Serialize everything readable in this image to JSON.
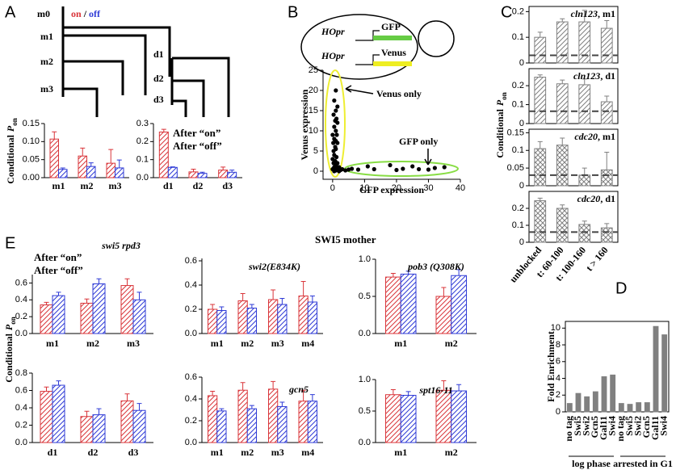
{
  "panel_labels": [
    "A",
    "B",
    "C",
    "D",
    "E"
  ],
  "lineage": {
    "cells": [
      "m0",
      "m1",
      "m2",
      "m3",
      "d1",
      "d2",
      "d3"
    ],
    "legend": [
      "on",
      "/",
      "off"
    ]
  },
  "cell_diagram": {
    "promoters": [
      "HOpr",
      "HOpr"
    ],
    "reporters": [
      "GFP",
      "Venus"
    ]
  },
  "panel_e_title": "SWI5 mother",
  "chart_data": [
    {
      "type": "bar",
      "ylabel": [
        "Conditional",
        "P",
        "on"
      ],
      "categories": [
        "m1",
        "m2",
        "m3"
      ],
      "hatch": "diagonal",
      "series": [
        {
          "color": "#d9353a",
          "values": [
            0.107,
            0.06,
            0.04
          ],
          "errors": [
            0.02,
            0.022,
            0.038
          ]
        },
        {
          "color": "#2f3bd6",
          "values": [
            0.023,
            0.031,
            0.027
          ],
          "errors": [
            0.004,
            0.01,
            0.022
          ]
        }
      ],
      "ylim": [
        0,
        0.15
      ],
      "yticks": [
        {
          "value": 0,
          "label": "0.00"
        },
        {
          "value": 0.05,
          "label": "0.05"
        },
        {
          "value": 0.1,
          "label": "0.10"
        },
        {
          "value": 0.15,
          "label": "0.15"
        }
      ]
    },
    {
      "type": "bar",
      "categories": [
        "d1",
        "d2",
        "d3"
      ],
      "hatch": "diagonal",
      "series": [
        {
          "name": "After “on”",
          "color": "#d9353a",
          "values": [
            0.253,
            0.032,
            0.042
          ],
          "errors": [
            0.015,
            0.015,
            0.017
          ]
        },
        {
          "name": "After “off”",
          "color": "#2f3bd6",
          "values": [
            0.057,
            0.024,
            0.03
          ],
          "errors": [
            0.003,
            0.006,
            0.012
          ]
        }
      ],
      "ylim": [
        0,
        0.3
      ],
      "yticks": [
        {
          "value": 0,
          "label": "0.0"
        },
        {
          "value": 0.1,
          "label": "0.1"
        },
        {
          "value": 0.2,
          "label": "0.2"
        },
        {
          "value": 0.3,
          "label": "0.3"
        }
      ]
    },
    {
      "type": "scatter",
      "xlabel": "GFP expression",
      "ylabel": "Venus expression",
      "annotations": [
        "Venus only",
        "GFP only"
      ],
      "series": [
        {
          "color": "#000000",
          "x": [
            1,
            0.5,
            1.5,
            1,
            0.3,
            1.2,
            0.8,
            1.5,
            0.5,
            1,
            0,
            1.3,
            0.5,
            1,
            0.2,
            1.5,
            0.8,
            0.3,
            1,
            0.5,
            1.2,
            0,
            0.8,
            1.5,
            0.3,
            1,
            2,
            0.5,
            1.5,
            3,
            2.5,
            0,
            1,
            4,
            5,
            6,
            0.5,
            2,
            8,
            11,
            13,
            18,
            20,
            22,
            25,
            27,
            30,
            32,
            35
          ],
          "y": [
            20,
            17.5,
            16,
            15,
            14,
            13,
            12.5,
            12,
            11,
            10,
            9,
            9,
            8,
            7.5,
            7,
            7,
            6,
            5,
            5.5,
            4,
            3.5,
            3,
            2.5,
            2,
            2,
            1.5,
            1,
            1,
            0.8,
            0.5,
            0.3,
            0.5,
            0.2,
            0.2,
            0.4,
            0.6,
            0,
            0,
            0.4,
            1.2,
            0.5,
            1.5,
            0.3,
            0.6,
            1.2,
            0.5,
            0.4,
            0.8,
            1
          ]
        }
      ],
      "xlim": [
        -3,
        40
      ],
      "xticks": [
        0,
        10,
        20,
        30,
        40
      ],
      "ylim": [
        -2,
        25
      ],
      "yticks": [
        0,
        5,
        10,
        15,
        20,
        25
      ]
    },
    {
      "type": "bar",
      "title_parts": [
        "cln123",
        ", m1"
      ],
      "ylabel": [
        "Conditional",
        "P",
        "on"
      ],
      "hatch": "diagonal",
      "color": "#808080",
      "values": [
        0.1,
        0.16,
        0.16,
        0.135
      ],
      "errors": [
        0.02,
        0.012,
        0.045,
        0.03
      ],
      "baseline": 0.03,
      "ylim": [
        0,
        0.22
      ],
      "yticks": [
        0,
        0.1,
        0.2
      ]
    },
    {
      "type": "bar",
      "title_parts": [
        "cln123",
        ", d1"
      ],
      "hatch": "diagonal",
      "color": "#808080",
      "values": [
        0.245,
        0.21,
        0.205,
        0.115
      ],
      "errors": [
        0.012,
        0.02,
        0.03,
        0.03
      ],
      "baseline": 0.065,
      "ylim": [
        0,
        0.29
      ],
      "yticks": [
        0,
        0.1,
        0.2
      ]
    },
    {
      "type": "bar",
      "title_parts": [
        "cdc20",
        ", m1"
      ],
      "hatch": "cross",
      "color": "#808080",
      "values": [
        0.105,
        0.115,
        0.03,
        0.045
      ],
      "errors": [
        0.02,
        0.02,
        0.02,
        0.05
      ],
      "baseline": 0.03,
      "ylim": [
        0,
        0.16
      ],
      "yticks": [
        0,
        0.05,
        0.1,
        0.15
      ]
    },
    {
      "type": "bar",
      "title_parts": [
        "cdc20",
        ", d1"
      ],
      "hatch": "cross",
      "color": "#808080",
      "categories": [
        "unblocked",
        "t: 60-100",
        "t: 100-160",
        "t > 160"
      ],
      "values": [
        0.245,
        0.2,
        0.105,
        0.085
      ],
      "errors": [
        0.015,
        0.02,
        0.02,
        0.025
      ],
      "baseline": 0.06,
      "ylim": [
        0,
        0.3
      ],
      "yticks": [
        0,
        0.1,
        0.2
      ]
    },
    {
      "type": "bar",
      "ylabel": "Fold Enrichment",
      "color": "#808080",
      "hatch": "solid",
      "categories": [
        "no tag",
        "Swi5",
        "Swi2",
        "Gcn5",
        "Gal11",
        "Swi4",
        "no tag",
        "Swi5",
        "Swi2",
        "Gcn5",
        "Gal11",
        "Swi4"
      ],
      "values": [
        1.0,
        2.2,
        1.8,
        2.4,
        4.2,
        4.4,
        1.0,
        0.9,
        1.1,
        1.1,
        10.2,
        9.2
      ],
      "group_labels": [
        "log phase",
        "arrested in G1"
      ],
      "ylim": [
        0,
        10.8
      ],
      "yticks": [
        0,
        2,
        4,
        6,
        8,
        10
      ]
    },
    {
      "type": "bar",
      "title": "swi5 rpd3",
      "ylabel": [
        "Conditional",
        "P",
        "on"
      ],
      "categories": [
        "m1",
        "m2",
        "m3"
      ],
      "hatch": "diagonal",
      "series": [
        {
          "name": "After “on”",
          "color": "#d9353a",
          "values": [
            0.34,
            0.36,
            0.57
          ],
          "errors": [
            0.03,
            0.05,
            0.08
          ]
        },
        {
          "name": "After “off”",
          "color": "#2f3bd6",
          "values": [
            0.45,
            0.59,
            0.4
          ],
          "errors": [
            0.04,
            0.06,
            0.09
          ]
        }
      ],
      "ylim": [
        0,
        0.7
      ],
      "yticks": [
        {
          "value": 0,
          "label": "0.0"
        },
        {
          "value": 0.2,
          "label": "0.2"
        },
        {
          "value": 0.4,
          "label": "0.4"
        },
        {
          "value": 0.6,
          "label": "0.6"
        }
      ]
    },
    {
      "type": "bar",
      "title": "swi2(E834K)",
      "categories": [
        "m1",
        "m2",
        "m3",
        "m4"
      ],
      "hatch": "diagonal",
      "series": [
        {
          "color": "#d9353a",
          "values": [
            0.2,
            0.27,
            0.28,
            0.31
          ],
          "errors": [
            0.04,
            0.06,
            0.08,
            0.12
          ]
        },
        {
          "color": "#2f3bd6",
          "values": [
            0.19,
            0.21,
            0.24,
            0.26
          ],
          "errors": [
            0.03,
            0.03,
            0.05,
            0.05
          ]
        }
      ],
      "ylim": [
        0,
        0.62
      ],
      "yticks": [
        {
          "value": 0,
          "label": "0.0"
        },
        {
          "value": 0.2,
          "label": "0.2"
        },
        {
          "value": 0.4,
          "label": "0.4"
        },
        {
          "value": 0.6,
          "label": "0.6"
        }
      ]
    },
    {
      "type": "bar",
      "title": "pob3 (Q308K)",
      "categories": [
        "m1",
        "m2"
      ],
      "hatch": "diagonal",
      "series": [
        {
          "color": "#d9353a",
          "values": [
            0.76,
            0.5
          ],
          "errors": [
            0.05,
            0.12
          ]
        },
        {
          "color": "#2f3bd6",
          "values": [
            0.8,
            0.78
          ],
          "errors": [
            0.04,
            0.08
          ]
        }
      ],
      "ylim": [
        0,
        1.0
      ],
      "yticks": [
        {
          "value": 0,
          "label": "0.0"
        },
        {
          "value": 0.5,
          "label": "0.5"
        },
        {
          "value": 1,
          "label": "1.0"
        }
      ]
    },
    {
      "type": "bar",
      "categories": [
        "d1",
        "d2",
        "d3"
      ],
      "hatch": "diagonal",
      "series": [
        {
          "color": "#d9353a",
          "values": [
            0.59,
            0.3,
            0.48
          ],
          "errors": [
            0.05,
            0.06,
            0.08
          ]
        },
        {
          "color": "#2f3bd6",
          "values": [
            0.66,
            0.32,
            0.37
          ],
          "errors": [
            0.05,
            0.07,
            0.08
          ]
        }
      ],
      "ylim": [
        0,
        0.8
      ],
      "yticks": [
        {
          "value": 0,
          "label": "0.0"
        },
        {
          "value": 0.2,
          "label": "0.2"
        },
        {
          "value": 0.4,
          "label": "0.4"
        },
        {
          "value": 0.6,
          "label": "0.6"
        },
        {
          "value": 0.8,
          "label": "0.8"
        }
      ]
    },
    {
      "type": "bar",
      "title": "gcn5",
      "categories": [
        "m1",
        "m2",
        "m3",
        "m4"
      ],
      "hatch": "diagonal",
      "series": [
        {
          "color": "#d9353a",
          "values": [
            0.43,
            0.48,
            0.49,
            0.38
          ],
          "errors": [
            0.04,
            0.07,
            0.07,
            0.1
          ]
        },
        {
          "color": "#2f3bd6",
          "values": [
            0.29,
            0.31,
            0.33,
            0.38
          ],
          "errors": [
            0.02,
            0.03,
            0.04,
            0.06
          ]
        }
      ],
      "ylim": [
        0,
        0.6
      ],
      "yticks": [
        {
          "value": 0,
          "label": "0.0"
        },
        {
          "value": 0.2,
          "label": "0.2"
        },
        {
          "value": 0.4,
          "label": "0.4"
        },
        {
          "value": 0.6,
          "label": "0.6"
        }
      ]
    },
    {
      "type": "bar",
      "title": "spt16-11",
      "categories": [
        "m1",
        "m2"
      ],
      "hatch": "diagonal",
      "series": [
        {
          "color": "#d9353a",
          "values": [
            0.76,
            0.83
          ],
          "errors": [
            0.08,
            0.15
          ]
        },
        {
          "color": "#2f3bd6",
          "values": [
            0.75,
            0.82
          ],
          "errors": [
            0.06,
            0.1
          ]
        }
      ],
      "ylim": [
        0,
        1.0
      ],
      "yticks": [
        {
          "value": 0,
          "label": "0.0"
        },
        {
          "value": 0.5,
          "label": "0.5"
        },
        {
          "value": 1,
          "label": "1.0"
        }
      ]
    }
  ]
}
